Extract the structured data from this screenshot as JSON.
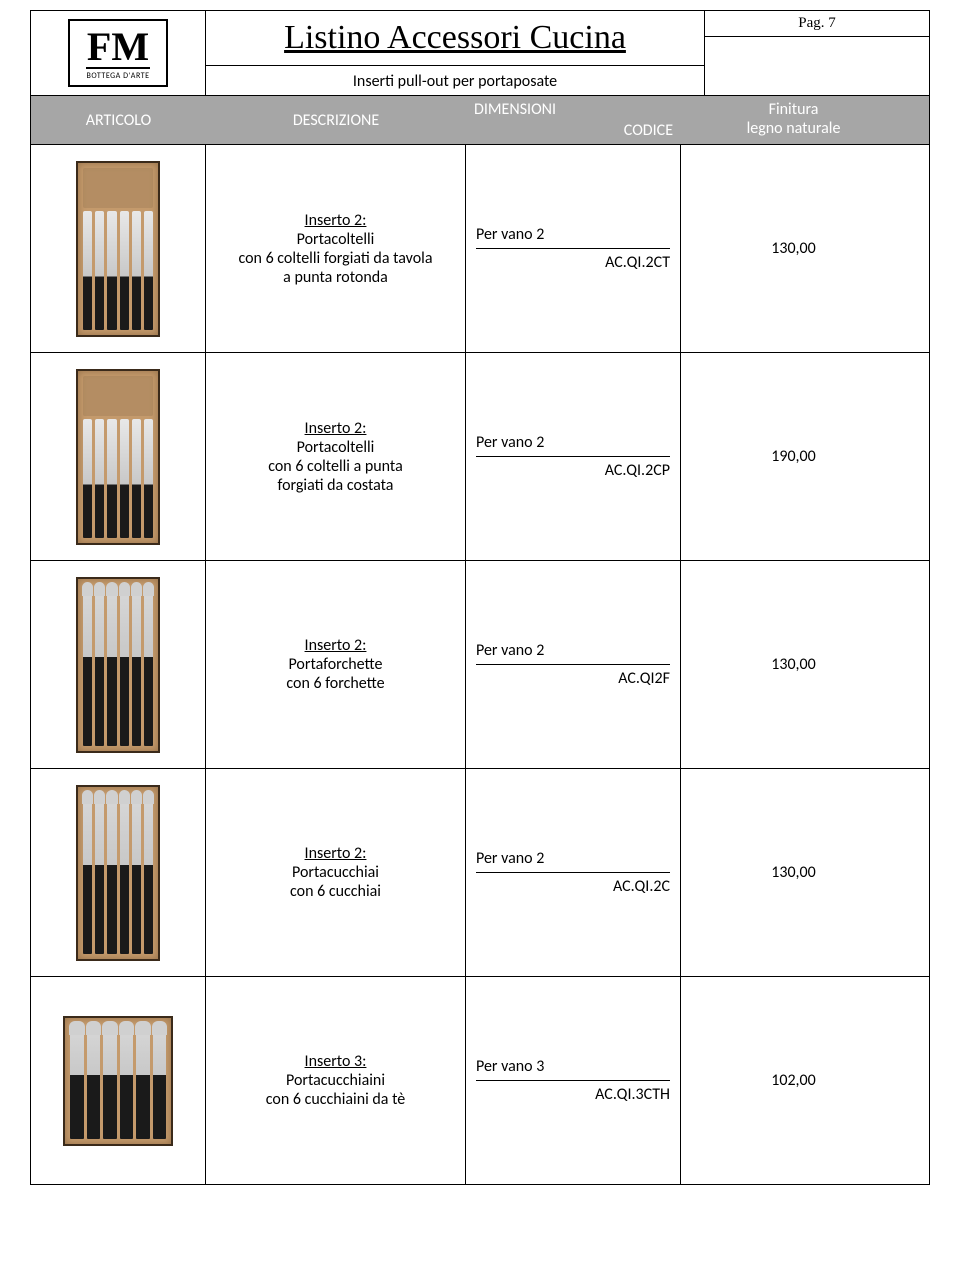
{
  "page": {
    "logo_main": "FM",
    "logo_sub": "BOTTEGA D'ARTE",
    "title": "Listino Accessori Cucina",
    "subtitle": "Inserti pull-out per portaposate",
    "page_label": "Pag. 7",
    "columns": {
      "articolo": "ARTICOLO",
      "descrizione": "DESCRIZIONE",
      "dimensioni": "DIMENSIONI",
      "codice": "CODICE",
      "finitura_line1": "Finitura",
      "finitura_line2": "legno naturale"
    },
    "header_bg": "#a6a6a6",
    "header_fg": "#ffffff"
  },
  "rows": [
    {
      "title": "Inserto 2:",
      "line1": "Portacoltelli",
      "line2": "con 6 coltelli forgiati da tavola",
      "line3": "a punta rotonda",
      "vano": "Per vano 2",
      "code": "AC.QI.2CT",
      "price": "130,00",
      "thumb_style": "knife"
    },
    {
      "title": "Inserto 2:",
      "line1": "Portacoltelli",
      "line2": "con 6 coltelli a punta",
      "line3": "forgiati da costata",
      "vano": "Per vano 2",
      "code": "AC.QI.2CP",
      "price": "190,00",
      "thumb_style": "knife"
    },
    {
      "title": "Inserto 2:",
      "line1": "Portaforchette",
      "line2": "con 6 forchette",
      "line3": "",
      "vano": "Per vano 2",
      "code": "AC.QI2F",
      "price": "130,00",
      "thumb_style": "fork"
    },
    {
      "title": "Inserto 2:",
      "line1": "Portacucchiai",
      "line2": "con 6 cucchiai",
      "line3": "",
      "vano": "Per vano 2",
      "code": "AC.QI.2C",
      "price": "130,00",
      "thumb_style": "spoon"
    },
    {
      "title": "Inserto 3:",
      "line1": "Portacucchiaini",
      "line2": "con 6 cucchiaini da tè",
      "line3": "",
      "vano": "Per vano 3",
      "code": "AC.QI.3CTH",
      "price": "102,00",
      "thumb_style": "spoon-wide"
    }
  ]
}
